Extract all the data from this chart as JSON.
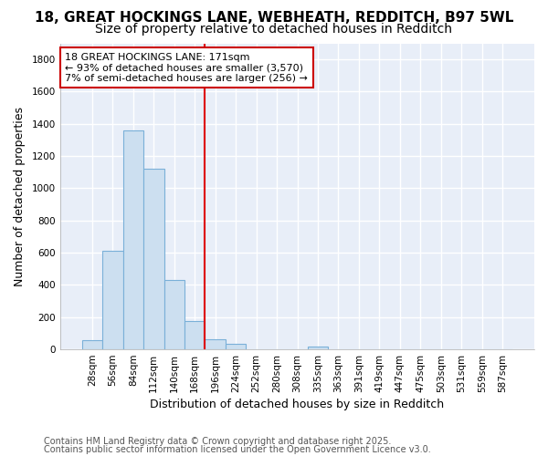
{
  "title_line1": "18, GREAT HOCKINGS LANE, WEBHEATH, REDDITCH, B97 5WL",
  "title_line2": "Size of property relative to detached houses in Redditch",
  "xlabel": "Distribution of detached houses by size in Redditch",
  "ylabel": "Number of detached properties",
  "categories": [
    "28sqm",
    "56sqm",
    "84sqm",
    "112sqm",
    "140sqm",
    "168sqm",
    "196sqm",
    "224sqm",
    "252sqm",
    "280sqm",
    "308sqm",
    "335sqm",
    "363sqm",
    "391sqm",
    "419sqm",
    "447sqm",
    "475sqm",
    "503sqm",
    "531sqm",
    "559sqm",
    "587sqm"
  ],
  "values": [
    55,
    610,
    1360,
    1120,
    430,
    175,
    65,
    35,
    0,
    0,
    0,
    15,
    0,
    0,
    0,
    0,
    0,
    0,
    0,
    0,
    0
  ],
  "bar_color": "#ccdff0",
  "bar_edge_color": "#7ab0d8",
  "vline_x": 5.5,
  "vline_color": "#dd0000",
  "annotation_text": "18 GREAT HOCKINGS LANE: 171sqm\n← 93% of detached houses are smaller (3,570)\n7% of semi-detached houses are larger (256) →",
  "annotation_box_color": "#ffffff",
  "annotation_box_edge": "#cc0000",
  "ylim": [
    0,
    1900
  ],
  "yticks": [
    0,
    200,
    400,
    600,
    800,
    1000,
    1200,
    1400,
    1600,
    1800
  ],
  "footer_line1": "Contains HM Land Registry data © Crown copyright and database right 2025.",
  "footer_line2": "Contains public sector information licensed under the Open Government Licence v3.0.",
  "fig_bg_color": "#ffffff",
  "plot_bg_color": "#e8eef8",
  "grid_color": "#ffffff",
  "title_fontsize": 11,
  "subtitle_fontsize": 10,
  "axis_label_fontsize": 9,
  "tick_fontsize": 7.5,
  "footer_fontsize": 7,
  "annotation_fontsize": 8
}
